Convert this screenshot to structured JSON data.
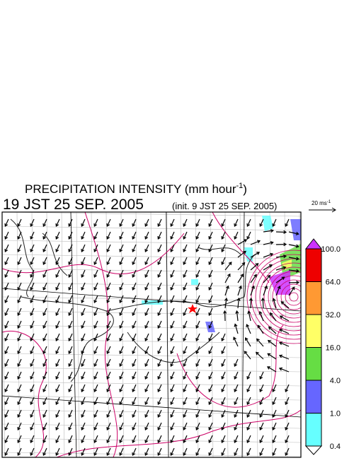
{
  "header": {
    "title": "PRECIPITATION INTENSITY (mm hour",
    "title_superscript": "-1",
    "title_end": ")",
    "valid_time": "19 JST 25 SEP. 2005",
    "init_time": "(init. 9 JST 25 SEP. 2005)"
  },
  "wind_scale": {
    "label": "20 ms",
    "superscript": "-1"
  },
  "colorbar": {
    "levels": [
      "100.0",
      "64.0",
      "32.0",
      "16.0",
      "4.0",
      "1.0",
      "0.4"
    ],
    "colors": [
      "#cc33ff",
      "#ee0000",
      "#ff9933",
      "#ffff66",
      "#66dd44",
      "#6666ff",
      "#66ffff",
      "#ffffff"
    ]
  }
}
